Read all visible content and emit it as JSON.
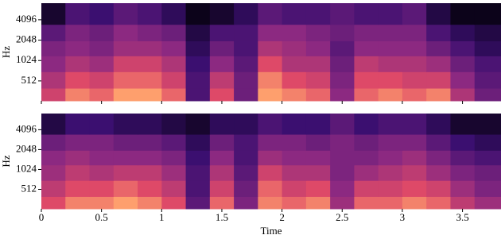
{
  "chart_data": [
    {
      "type": "spectrogram",
      "ylabel": "Hz",
      "colormap": "magma",
      "yscale": "log",
      "xlim": [
        0,
        3.82
      ],
      "ylim": [
        260,
        7200
      ],
      "xticks": [
        0,
        0.5,
        1,
        1.5,
        2,
        2.5,
        3,
        3.5
      ],
      "xtick_labels": false,
      "yticks": [
        512,
        1024,
        2048,
        4096
      ],
      "x_edges": [
        0,
        0.2,
        0.4,
        0.6,
        0.8,
        1.0,
        1.2,
        1.4,
        1.6,
        1.8,
        2.0,
        2.2,
        2.4,
        2.6,
        2.8,
        3.0,
        3.2,
        3.4,
        3.6,
        3.82
      ],
      "y_edges": [
        260,
        400,
        700,
        1200,
        2000,
        3500,
        7200
      ],
      "values": [
        [
          0.7,
          0.85,
          0.8,
          0.9,
          0.9,
          0.8,
          0.3,
          0.75,
          0.4,
          0.9,
          0.85,
          0.8,
          0.5,
          0.8,
          0.85,
          0.8,
          0.85,
          0.6,
          0.4
        ],
        [
          0.6,
          0.75,
          0.7,
          0.8,
          0.8,
          0.7,
          0.3,
          0.65,
          0.4,
          0.85,
          0.75,
          0.7,
          0.45,
          0.75,
          0.75,
          0.7,
          0.7,
          0.5,
          0.35
        ],
        [
          0.5,
          0.6,
          0.55,
          0.7,
          0.7,
          0.6,
          0.25,
          0.5,
          0.35,
          0.75,
          0.6,
          0.6,
          0.4,
          0.65,
          0.6,
          0.6,
          0.55,
          0.4,
          0.3
        ],
        [
          0.45,
          0.5,
          0.45,
          0.55,
          0.55,
          0.5,
          0.2,
          0.4,
          0.3,
          0.6,
          0.55,
          0.5,
          0.35,
          0.5,
          0.5,
          0.5,
          0.4,
          0.3,
          0.2
        ],
        [
          0.35,
          0.45,
          0.4,
          0.5,
          0.45,
          0.4,
          0.15,
          0.3,
          0.3,
          0.5,
          0.5,
          0.45,
          0.4,
          0.45,
          0.45,
          0.45,
          0.3,
          0.2,
          0.15
        ],
        [
          0.1,
          0.3,
          0.25,
          0.35,
          0.3,
          0.2,
          0.05,
          0.1,
          0.2,
          0.35,
          0.3,
          0.3,
          0.35,
          0.3,
          0.3,
          0.35,
          0.15,
          0.05,
          0.05
        ]
      ]
    },
    {
      "type": "spectrogram",
      "ylabel": "Hz",
      "xlabel": "Time",
      "colormap": "magma",
      "yscale": "log",
      "xlim": [
        0,
        3.82
      ],
      "ylim": [
        260,
        7200
      ],
      "xticks": [
        0,
        0.5,
        1,
        1.5,
        2,
        2.5,
        3,
        3.5
      ],
      "xtick_labels": true,
      "yticks": [
        512,
        1024,
        2048,
        4096
      ],
      "x_edges": [
        0,
        0.2,
        0.4,
        0.6,
        0.8,
        1.0,
        1.2,
        1.4,
        1.6,
        1.8,
        2.0,
        2.2,
        2.4,
        2.6,
        2.8,
        3.0,
        3.2,
        3.4,
        3.6,
        3.82
      ],
      "y_edges": [
        260,
        400,
        700,
        1200,
        2000,
        3500,
        7200
      ],
      "values": [
        [
          0.75,
          0.85,
          0.85,
          0.9,
          0.85,
          0.75,
          0.35,
          0.8,
          0.45,
          0.85,
          0.8,
          0.85,
          0.55,
          0.8,
          0.8,
          0.85,
          0.8,
          0.65,
          0.55
        ],
        [
          0.65,
          0.75,
          0.75,
          0.8,
          0.75,
          0.65,
          0.3,
          0.7,
          0.4,
          0.8,
          0.7,
          0.75,
          0.5,
          0.7,
          0.7,
          0.75,
          0.7,
          0.55,
          0.45
        ],
        [
          0.55,
          0.65,
          0.6,
          0.65,
          0.65,
          0.55,
          0.3,
          0.6,
          0.35,
          0.7,
          0.6,
          0.6,
          0.45,
          0.55,
          0.6,
          0.65,
          0.55,
          0.45,
          0.4
        ],
        [
          0.5,
          0.55,
          0.5,
          0.5,
          0.5,
          0.45,
          0.25,
          0.5,
          0.3,
          0.55,
          0.5,
          0.5,
          0.45,
          0.45,
          0.5,
          0.55,
          0.45,
          0.35,
          0.3
        ],
        [
          0.4,
          0.45,
          0.45,
          0.4,
          0.4,
          0.35,
          0.2,
          0.4,
          0.3,
          0.45,
          0.45,
          0.4,
          0.45,
          0.4,
          0.45,
          0.45,
          0.35,
          0.25,
          0.2
        ],
        [
          0.15,
          0.25,
          0.25,
          0.2,
          0.2,
          0.15,
          0.1,
          0.2,
          0.2,
          0.3,
          0.25,
          0.25,
          0.35,
          0.25,
          0.3,
          0.3,
          0.2,
          0.1,
          0.1
        ]
      ]
    }
  ]
}
